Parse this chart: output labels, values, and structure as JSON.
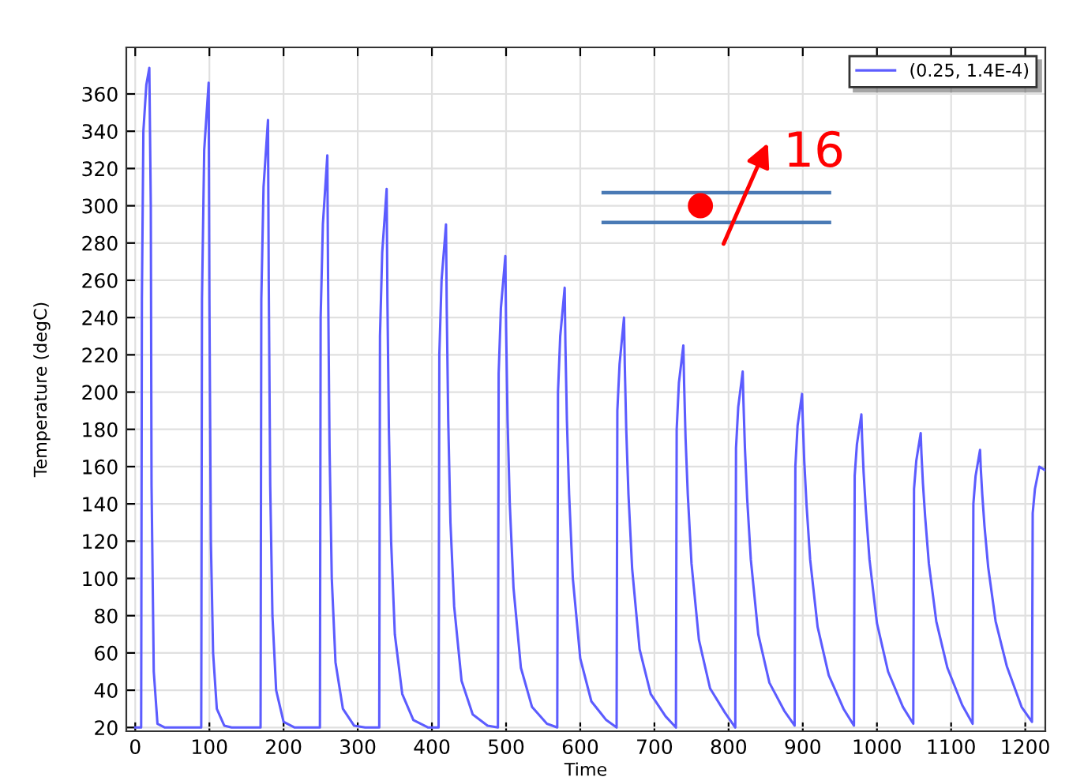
{
  "chart_data": {
    "type": "line",
    "xlabel": "Time",
    "ylabel": "Temperature (degC)",
    "xlim": [
      -12,
      1227
    ],
    "ylim": [
      18,
      385
    ],
    "xticks": [
      0,
      100,
      200,
      300,
      400,
      500,
      600,
      700,
      800,
      900,
      1000,
      1100,
      1200
    ],
    "yticks": [
      20,
      40,
      60,
      80,
      100,
      120,
      140,
      160,
      180,
      200,
      220,
      240,
      260,
      280,
      300,
      320,
      340,
      360
    ],
    "grid": true,
    "legend": "top right",
    "annotations": [
      "16"
    ],
    "series": [
      {
        "name": "(0.25, 1.4E-4)",
        "color": "#5c5cff",
        "x": [
          0,
          8,
          9,
          11,
          15,
          19,
          21,
          22,
          25,
          30,
          40,
          89,
          90,
          93,
          99,
          100,
          102,
          105,
          110,
          120,
          130,
          169,
          170,
          173,
          179,
          180,
          182,
          185,
          190,
          200,
          215,
          249,
          250,
          253,
          259,
          260,
          262,
          265,
          270,
          280,
          295,
          310,
          329,
          330,
          333,
          339,
          340,
          342,
          345,
          350,
          360,
          375,
          395,
          409,
          410,
          413,
          419,
          420,
          422,
          425,
          430,
          440,
          455,
          475,
          489,
          490,
          493,
          499,
          500,
          502,
          505,
          510,
          520,
          535,
          555,
          569,
          570,
          573,
          579,
          580,
          582,
          585,
          590,
          600,
          615,
          635,
          649,
          650,
          653,
          659,
          660,
          662,
          665,
          670,
          680,
          695,
          715,
          729,
          730,
          733,
          739,
          740,
          742,
          745,
          750,
          760,
          775,
          795,
          809,
          810,
          813,
          819,
          820,
          822,
          825,
          830,
          840,
          855,
          875,
          889,
          890,
          893,
          899,
          900,
          902,
          905,
          910,
          920,
          935,
          955,
          969,
          970,
          973,
          979,
          980,
          982,
          985,
          990,
          1000,
          1015,
          1035,
          1049,
          1050,
          1053,
          1059,
          1060,
          1062,
          1065,
          1070,
          1080,
          1095,
          1115,
          1129,
          1130,
          1133,
          1139,
          1140,
          1142,
          1145,
          1150,
          1160,
          1175,
          1195,
          1209,
          1210,
          1213,
          1219,
          1227
        ],
        "values": [
          20,
          20,
          250,
          340,
          365,
          374,
          300,
          150,
          50,
          22,
          20,
          20,
          250,
          330,
          366,
          250,
          120,
          60,
          30,
          21,
          20,
          20,
          250,
          310,
          346,
          260,
          150,
          80,
          40,
          23,
          20,
          20,
          240,
          290,
          327,
          260,
          170,
          100,
          55,
          30,
          21,
          20,
          20,
          230,
          275,
          309,
          250,
          180,
          120,
          70,
          38,
          24,
          20,
          20,
          220,
          260,
          290,
          245,
          185,
          130,
          85,
          45,
          27,
          21,
          20,
          210,
          245,
          273,
          235,
          185,
          140,
          95,
          52,
          31,
          22,
          20,
          200,
          230,
          256,
          225,
          185,
          145,
          100,
          57,
          34,
          24,
          20,
          190,
          215,
          240,
          215,
          180,
          145,
          105,
          62,
          38,
          26,
          20,
          180,
          205,
          225,
          205,
          175,
          145,
          108,
          67,
          41,
          28,
          20,
          170,
          192,
          211,
          195,
          170,
          143,
          110,
          70,
          44,
          29,
          21,
          160,
          182,
          199,
          185,
          163,
          140,
          110,
          74,
          48,
          30,
          21,
          155,
          172,
          188,
          175,
          157,
          137,
          110,
          76,
          50,
          31,
          22,
          148,
          163,
          178,
          167,
          151,
          133,
          108,
          77,
          52,
          32,
          22,
          140,
          155,
          169,
          159,
          145,
          128,
          106,
          77,
          53,
          31,
          23,
          135,
          148,
          160,
          158
        ]
      },
      {
        "color": "#4a7ab5",
        "x": [
          631,
          936
        ],
        "values": [
          307,
          307
        ]
      },
      {
        "color": "#4a7ab5",
        "x": [
          631,
          936
        ],
        "values": [
          291,
          291
        ]
      },
      {
        "type": "scatter",
        "color": "#ff0000",
        "x": [
          762
        ],
        "values": [
          300
        ]
      }
    ]
  }
}
